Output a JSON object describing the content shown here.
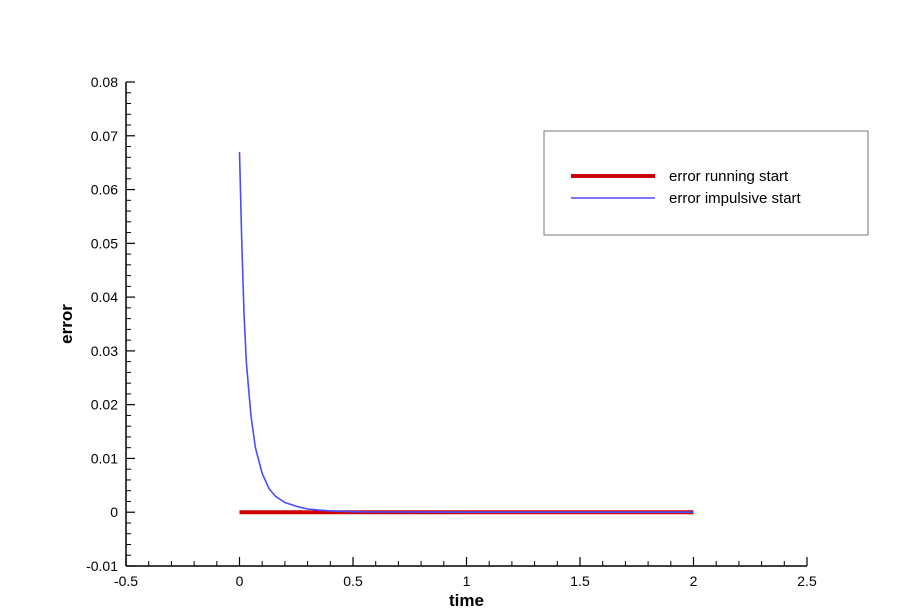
{
  "chart_data": {
    "type": "line",
    "title": "",
    "xlabel": "time",
    "ylabel": "error",
    "xlim": [
      -0.5,
      2.5
    ],
    "ylim": [
      -0.01,
      0.08
    ],
    "x_ticks": [
      -0.5,
      0,
      0.5,
      1,
      1.5,
      2,
      2.5
    ],
    "x_tick_labels": [
      "-0.5",
      "0",
      "0.5",
      "1",
      "1.5",
      "2",
      "2.5"
    ],
    "y_ticks": [
      -0.01,
      0,
      0.01,
      0.02,
      0.03,
      0.04,
      0.05,
      0.06,
      0.07,
      0.08
    ],
    "y_tick_labels": [
      "-0.01",
      "0",
      "0.01",
      "0.02",
      "0.03",
      "0.04",
      "0.05",
      "0.06",
      "0.07",
      "0.08"
    ],
    "grid": false,
    "legend_position": "top-right",
    "series": [
      {
        "name": "error running start",
        "color": "#cc0000",
        "x": [
          0,
          0.5,
          1,
          1.5,
          2
        ],
        "y": [
          0,
          0,
          0,
          0,
          0
        ]
      },
      {
        "name": "error impulsive start",
        "color": "#4b4bff",
        "x": [
          0,
          0.01,
          0.02,
          0.03,
          0.05,
          0.07,
          0.1,
          0.13,
          0.16,
          0.2,
          0.25,
          0.3,
          0.35,
          0.4,
          0.5,
          0.6,
          0.8,
          1.0,
          1.5,
          2.0
        ],
        "y": [
          0.067,
          0.05,
          0.037,
          0.028,
          0.018,
          0.012,
          0.0072,
          0.0044,
          0.0029,
          0.0018,
          0.0011,
          0.0006,
          0.0004,
          0.00025,
          0.0001,
          5e-05,
          2e-05,
          1e-05,
          0,
          0
        ]
      }
    ]
  }
}
